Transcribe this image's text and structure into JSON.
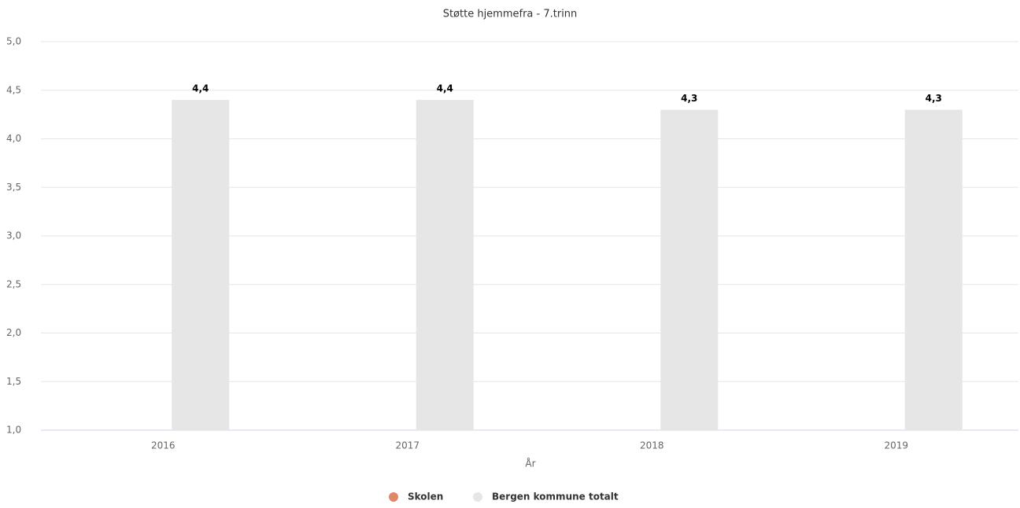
{
  "chart_data": {
    "type": "bar",
    "title": "Støtte hjemmefra - 7.trinn",
    "x_label": "År",
    "categories": [
      "2016",
      "2017",
      "2018",
      "2019"
    ],
    "series": [
      {
        "name": "Skolen",
        "color": "#e0876a",
        "values": [
          null,
          null,
          null,
          null
        ]
      },
      {
        "name": "Bergen kommune totalt",
        "color": "#e6e6e6",
        "values": [
          4.4,
          4.4,
          4.3,
          4.3
        ],
        "value_labels": [
          "4,4",
          "4,4",
          "4,3",
          "4,3"
        ]
      }
    ],
    "ylim": [
      1,
      5
    ],
    "yticks": [
      {
        "value": 1,
        "label": "1,0"
      },
      {
        "value": 1.5,
        "label": "1,5"
      },
      {
        "value": 2,
        "label": "2,0"
      },
      {
        "value": 2.5,
        "label": "2,5"
      },
      {
        "value": 3,
        "label": "3,0"
      },
      {
        "value": 3.5,
        "label": "3,5"
      },
      {
        "value": 4,
        "label": "4,0"
      },
      {
        "value": 4.5,
        "label": "4,5"
      },
      {
        "value": 5,
        "label": "5,0"
      }
    ],
    "grid": true,
    "legend": "bottom"
  }
}
